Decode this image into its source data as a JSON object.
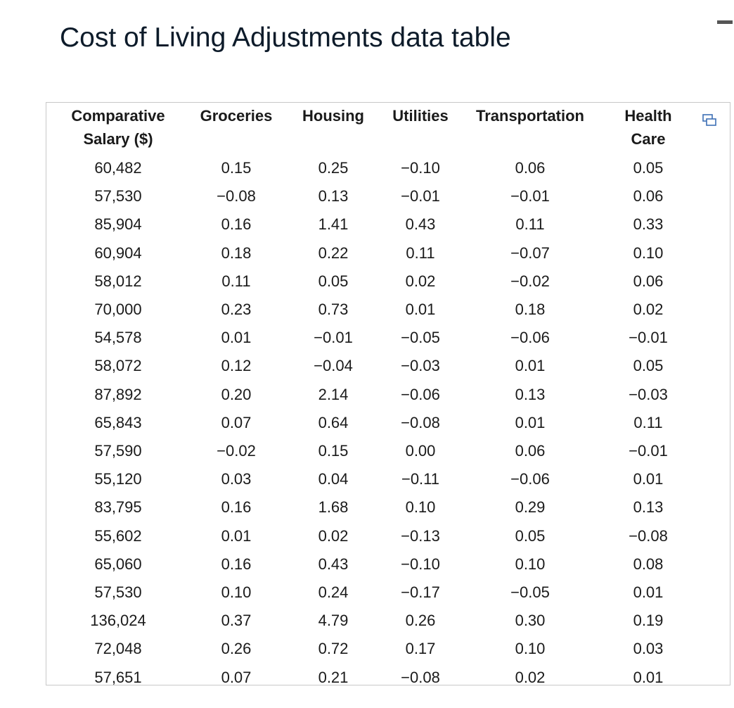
{
  "header": {
    "title": "Cost of Living Adjustments data table"
  },
  "table": {
    "columns": [
      "Comparative Salary ($)",
      "Groceries",
      "Housing",
      "Utilities",
      "Transportation",
      "Health Care"
    ],
    "rows": [
      [
        "60,482",
        "0.15",
        "0.25",
        "−0.10",
        "0.06",
        "0.05"
      ],
      [
        "57,530",
        "−0.08",
        "0.13",
        "−0.01",
        "−0.01",
        "0.06"
      ],
      [
        "85,904",
        "0.16",
        "1.41",
        "0.43",
        "0.11",
        "0.33"
      ],
      [
        "60,904",
        "0.18",
        "0.22",
        "0.11",
        "−0.07",
        "0.10"
      ],
      [
        "58,012",
        "0.11",
        "0.05",
        "0.02",
        "−0.02",
        "0.06"
      ],
      [
        "70,000",
        "0.23",
        "0.73",
        "0.01",
        "0.18",
        "0.02"
      ],
      [
        "54,578",
        "0.01",
        "−0.01",
        "−0.05",
        "−0.06",
        "−0.01"
      ],
      [
        "58,072",
        "0.12",
        "−0.04",
        "−0.03",
        "0.01",
        "0.05"
      ],
      [
        "87,892",
        "0.20",
        "2.14",
        "−0.06",
        "0.13",
        "−0.03"
      ],
      [
        "65,843",
        "0.07",
        "0.64",
        "−0.08",
        "0.01",
        "0.11"
      ],
      [
        "57,590",
        "−0.02",
        "0.15",
        "0.00",
        "0.06",
        "−0.01"
      ],
      [
        "55,120",
        "0.03",
        "0.04",
        "−0.11",
        "−0.06",
        "0.01"
      ],
      [
        "83,795",
        "0.16",
        "1.68",
        "0.10",
        "0.29",
        "0.13"
      ],
      [
        "55,602",
        "0.01",
        "0.02",
        "−0.13",
        "0.05",
        "−0.08"
      ],
      [
        "65,060",
        "0.16",
        "0.43",
        "−0.10",
        "0.10",
        "0.08"
      ],
      [
        "57,530",
        "0.10",
        "0.24",
        "−0.17",
        "−0.05",
        "0.01"
      ],
      [
        "136,024",
        "0.37",
        "4.79",
        "0.26",
        "0.30",
        "0.19"
      ],
      [
        "72,048",
        "0.26",
        "0.72",
        "0.17",
        "0.10",
        "0.03"
      ],
      [
        "57,651",
        "0.07",
        "0.21",
        "−0.08",
        "0.02",
        "0.01"
      ]
    ]
  }
}
